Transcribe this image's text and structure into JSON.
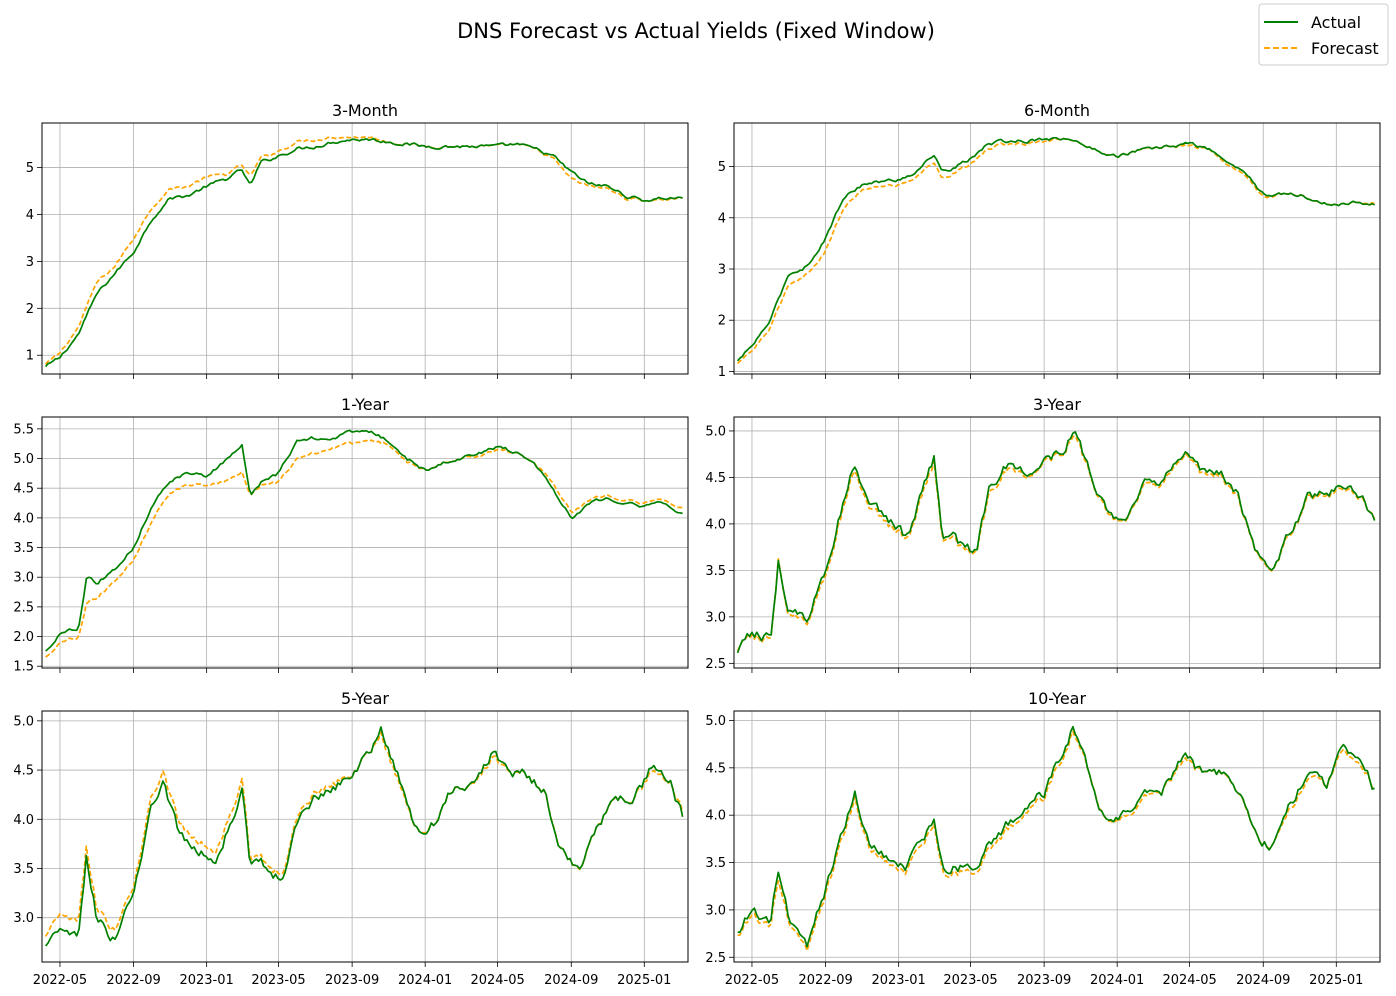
{
  "figure": {
    "title": "DNS Forecast vs Actual Yields (Fixed Window)"
  },
  "legend": {
    "position": "top-right",
    "actual_label": "Actual",
    "forecast_label": "Forecast"
  },
  "colors": {
    "actual": "#008000",
    "forecast": "#FFA500",
    "grid": "#b0b0b0"
  },
  "x_axis": {
    "start": "2022-04-01",
    "end": "2025-03-15",
    "ticks": [
      {
        "date": "2022-05-01",
        "label": "2022-05"
      },
      {
        "date": "2022-09-01",
        "label": "2022-09"
      },
      {
        "date": "2023-01-01",
        "label": "2023-01"
      },
      {
        "date": "2023-05-01",
        "label": "2023-05"
      },
      {
        "date": "2023-09-01",
        "label": "2023-09"
      },
      {
        "date": "2024-01-01",
        "label": "2024-01"
      },
      {
        "date": "2024-05-01",
        "label": "2024-05"
      },
      {
        "date": "2024-09-01",
        "label": "2024-09"
      },
      {
        "date": "2025-01-01",
        "label": "2025-01"
      }
    ]
  },
  "chart_data": [
    {
      "type": "line",
      "title": "3-Month",
      "ylim": [
        0.6,
        5.95
      ],
      "yticks": [
        1,
        2,
        3,
        4,
        5
      ],
      "ytick_labels": [
        "1",
        "2",
        "3",
        "4",
        "5"
      ],
      "grid": true,
      "x": [
        "2022-04-07",
        "2022-05-01",
        "2022-06-01",
        "2022-07-01",
        "2022-08-01",
        "2022-09-01",
        "2022-10-01",
        "2022-11-01",
        "2022-12-01",
        "2023-01-01",
        "2023-02-01",
        "2023-03-01",
        "2023-03-15",
        "2023-04-01",
        "2023-05-01",
        "2023-06-01",
        "2023-07-01",
        "2023-08-01",
        "2023-09-01",
        "2023-10-01",
        "2023-11-01",
        "2023-12-01",
        "2024-01-01",
        "2024-02-01",
        "2024-03-01",
        "2024-04-01",
        "2024-05-01",
        "2024-06-01",
        "2024-07-01",
        "2024-08-01",
        "2024-09-01",
        "2024-10-01",
        "2024-11-01",
        "2024-12-01",
        "2025-01-01",
        "2025-02-01",
        "2025-03-07"
      ],
      "series": [
        {
          "name": "Actual",
          "values": [
            0.75,
            0.95,
            1.45,
            2.3,
            2.75,
            3.2,
            3.9,
            4.35,
            4.4,
            4.6,
            4.75,
            4.95,
            4.6,
            5.1,
            5.25,
            5.4,
            5.45,
            5.55,
            5.6,
            5.6,
            5.55,
            5.5,
            5.45,
            5.45,
            5.45,
            5.45,
            5.45,
            5.5,
            5.4,
            5.25,
            4.9,
            4.65,
            4.6,
            4.4,
            4.3,
            4.35,
            4.35
          ]
        },
        {
          "name": "Forecast",
          "values": [
            0.8,
            1.05,
            1.6,
            2.55,
            2.9,
            3.5,
            4.15,
            4.55,
            4.6,
            4.8,
            4.85,
            5.05,
            4.8,
            5.2,
            5.35,
            5.55,
            5.6,
            5.65,
            5.65,
            5.65,
            5.55,
            5.5,
            5.45,
            5.45,
            5.45,
            5.45,
            5.45,
            5.5,
            5.4,
            5.2,
            4.75,
            4.6,
            4.55,
            4.35,
            4.3,
            4.32,
            4.35
          ]
        }
      ]
    },
    {
      "type": "line",
      "title": "6-Month",
      "ylim": [
        0.95,
        5.85
      ],
      "yticks": [
        1,
        2,
        3,
        4,
        5
      ],
      "ytick_labels": [
        "1",
        "2",
        "3",
        "4",
        "5"
      ],
      "grid": true,
      "x": [
        "2022-04-07",
        "2022-05-01",
        "2022-06-01",
        "2022-07-01",
        "2022-08-01",
        "2022-09-01",
        "2022-10-01",
        "2022-11-01",
        "2022-12-01",
        "2023-01-01",
        "2023-02-01",
        "2023-03-01",
        "2023-03-15",
        "2023-04-01",
        "2023-05-01",
        "2023-06-01",
        "2023-07-01",
        "2023-08-01",
        "2023-09-01",
        "2023-10-01",
        "2023-11-01",
        "2023-12-01",
        "2024-01-01",
        "2024-02-01",
        "2024-03-01",
        "2024-04-01",
        "2024-05-01",
        "2024-06-01",
        "2024-07-01",
        "2024-08-01",
        "2024-09-01",
        "2024-10-01",
        "2024-11-01",
        "2024-12-01",
        "2025-01-01",
        "2025-02-01",
        "2025-03-07"
      ],
      "series": [
        {
          "name": "Actual",
          "values": [
            1.2,
            1.5,
            2.0,
            2.9,
            3.05,
            3.6,
            4.4,
            4.65,
            4.7,
            4.75,
            4.9,
            5.25,
            4.9,
            4.95,
            5.15,
            5.45,
            5.5,
            5.5,
            5.55,
            5.55,
            5.45,
            5.3,
            5.2,
            5.3,
            5.35,
            5.4,
            5.45,
            5.35,
            5.1,
            4.9,
            4.45,
            4.45,
            4.45,
            4.3,
            4.25,
            4.3,
            4.28
          ]
        },
        {
          "name": "Forecast",
          "values": [
            1.15,
            1.4,
            1.85,
            2.7,
            2.9,
            3.35,
            4.2,
            4.55,
            4.6,
            4.65,
            4.8,
            5.1,
            4.75,
            4.85,
            5.05,
            5.35,
            5.45,
            5.45,
            5.5,
            5.55,
            5.45,
            5.3,
            5.2,
            5.3,
            5.35,
            5.4,
            5.4,
            5.35,
            5.05,
            4.85,
            4.4,
            4.45,
            4.45,
            4.3,
            4.25,
            4.3,
            4.3
          ]
        }
      ]
    },
    {
      "type": "line",
      "title": "1-Year",
      "ylim": [
        1.47,
        5.7
      ],
      "yticks": [
        1.5,
        2.0,
        2.5,
        3.0,
        3.5,
        4.0,
        4.5,
        5.0,
        5.5
      ],
      "ytick_labels": [
        "1.5",
        "2.0",
        "2.5",
        "3.0",
        "3.5",
        "4.0",
        "4.5",
        "5.0",
        "5.5"
      ],
      "grid": true,
      "x": [
        "2022-04-07",
        "2022-05-01",
        "2022-06-01",
        "2022-06-15",
        "2022-07-01",
        "2022-08-01",
        "2022-09-01",
        "2022-10-01",
        "2022-11-01",
        "2022-12-01",
        "2023-01-01",
        "2023-02-01",
        "2023-03-01",
        "2023-03-15",
        "2023-04-01",
        "2023-05-01",
        "2023-06-01",
        "2023-07-01",
        "2023-08-01",
        "2023-09-01",
        "2023-10-01",
        "2023-11-01",
        "2023-12-01",
        "2024-01-01",
        "2024-02-01",
        "2024-03-01",
        "2024-04-01",
        "2024-05-01",
        "2024-06-01",
        "2024-07-01",
        "2024-08-01",
        "2024-09-01",
        "2024-10-01",
        "2024-11-01",
        "2024-12-01",
        "2025-01-01",
        "2025-02-01",
        "2025-03-07"
      ],
      "series": [
        {
          "name": "Actual",
          "values": [
            1.75,
            2.05,
            2.15,
            3.05,
            2.9,
            3.15,
            3.5,
            4.2,
            4.65,
            4.75,
            4.7,
            4.95,
            5.2,
            4.4,
            4.6,
            4.75,
            5.3,
            5.35,
            5.35,
            5.45,
            5.45,
            5.3,
            5.0,
            4.8,
            4.95,
            5.0,
            5.1,
            5.2,
            5.1,
            4.95,
            4.5,
            4.0,
            4.25,
            4.35,
            4.25,
            4.2,
            4.25,
            4.05
          ]
        },
        {
          "name": "Forecast",
          "values": [
            1.65,
            1.9,
            2.0,
            2.6,
            2.65,
            2.95,
            3.3,
            3.95,
            4.45,
            4.55,
            4.55,
            4.6,
            4.75,
            4.4,
            4.55,
            4.6,
            5.0,
            5.1,
            5.2,
            5.25,
            5.3,
            5.25,
            4.95,
            4.8,
            4.95,
            5.0,
            5.05,
            5.15,
            5.1,
            4.95,
            4.6,
            4.1,
            4.3,
            4.4,
            4.3,
            4.25,
            4.3,
            4.15
          ]
        }
      ]
    },
    {
      "type": "line",
      "title": "3-Year",
      "ylim": [
        2.45,
        5.15
      ],
      "yticks": [
        2.5,
        3.0,
        3.5,
        4.0,
        4.5,
        5.0
      ],
      "ytick_labels": [
        "2.5",
        "3.0",
        "3.5",
        "4.0",
        "4.5",
        "5.0"
      ],
      "grid": true,
      "x": [
        "2022-04-07",
        "2022-05-01",
        "2022-06-01",
        "2022-06-14",
        "2022-07-01",
        "2022-08-01",
        "2022-09-01",
        "2022-10-01",
        "2022-10-20",
        "2022-11-15",
        "2022-12-15",
        "2023-01-15",
        "2023-03-01",
        "2023-03-15",
        "2023-04-01",
        "2023-04-20",
        "2023-05-10",
        "2023-06-01",
        "2023-07-01",
        "2023-08-01",
        "2023-09-01",
        "2023-10-01",
        "2023-10-20",
        "2023-11-15",
        "2023-12-15",
        "2024-01-15",
        "2024-02-15",
        "2024-03-15",
        "2024-04-25",
        "2024-05-20",
        "2024-06-20",
        "2024-07-20",
        "2024-08-15",
        "2024-09-01",
        "2024-09-15",
        "2024-10-15",
        "2024-11-15",
        "2024-12-15",
        "2025-01-15",
        "2025-02-15",
        "2025-03-07"
      ],
      "series": [
        {
          "name": "Actual",
          "values": [
            2.6,
            2.85,
            2.75,
            3.6,
            3.1,
            2.95,
            3.5,
            4.25,
            4.65,
            4.2,
            4.05,
            3.85,
            4.7,
            3.8,
            3.85,
            3.75,
            3.7,
            4.35,
            4.65,
            4.55,
            4.7,
            4.8,
            5.0,
            4.6,
            4.1,
            4.1,
            4.45,
            4.45,
            4.85,
            4.55,
            4.55,
            4.35,
            3.75,
            3.6,
            3.45,
            3.9,
            4.3,
            4.3,
            4.45,
            4.3,
            4.0
          ]
        },
        {
          "name": "Forecast",
          "values": [
            2.62,
            2.82,
            2.72,
            3.62,
            3.05,
            2.92,
            3.45,
            4.2,
            4.6,
            4.15,
            4.0,
            3.82,
            4.65,
            3.78,
            3.82,
            3.72,
            3.68,
            4.3,
            4.6,
            4.52,
            4.68,
            4.78,
            4.96,
            4.58,
            4.08,
            4.08,
            4.42,
            4.42,
            4.82,
            4.52,
            4.52,
            4.32,
            3.75,
            3.58,
            3.45,
            3.88,
            4.28,
            4.28,
            4.42,
            4.28,
            4.02
          ]
        }
      ]
    },
    {
      "type": "line",
      "title": "5-Year",
      "ylim": [
        2.55,
        5.1
      ],
      "yticks": [
        3.0,
        3.5,
        4.0,
        4.5,
        5.0
      ],
      "ytick_labels": [
        "3.0",
        "3.5",
        "4.0",
        "4.5",
        "5.0"
      ],
      "grid": true,
      "x": [
        "2022-04-07",
        "2022-05-01",
        "2022-06-01",
        "2022-06-14",
        "2022-07-01",
        "2022-08-01",
        "2022-09-01",
        "2022-10-01",
        "2022-10-20",
        "2022-11-15",
        "2022-12-15",
        "2023-01-15",
        "2023-03-01",
        "2023-03-15",
        "2023-04-01",
        "2023-04-20",
        "2023-05-10",
        "2023-06-01",
        "2023-07-01",
        "2023-08-01",
        "2023-09-01",
        "2023-10-01",
        "2023-10-20",
        "2023-11-15",
        "2023-12-15",
        "2024-01-15",
        "2024-02-15",
        "2024-03-15",
        "2024-04-25",
        "2024-05-20",
        "2024-06-20",
        "2024-07-20",
        "2024-08-15",
        "2024-09-01",
        "2024-09-15",
        "2024-10-15",
        "2024-11-15",
        "2024-12-15",
        "2025-01-15",
        "2025-02-15",
        "2025-03-07"
      ],
      "series": [
        {
          "name": "Actual",
          "values": [
            2.7,
            2.9,
            2.8,
            3.6,
            3.0,
            2.75,
            3.3,
            4.1,
            4.4,
            3.85,
            3.7,
            3.55,
            4.3,
            3.5,
            3.55,
            3.45,
            3.4,
            3.95,
            4.2,
            4.3,
            4.45,
            4.7,
            4.9,
            4.5,
            3.9,
            3.95,
            4.3,
            4.3,
            4.7,
            4.45,
            4.45,
            4.25,
            3.7,
            3.55,
            3.45,
            3.95,
            4.2,
            4.2,
            4.55,
            4.35,
            4.0
          ]
        },
        {
          "name": "Forecast",
          "values": [
            2.8,
            3.05,
            2.95,
            3.7,
            3.1,
            2.85,
            3.35,
            4.2,
            4.5,
            3.95,
            3.8,
            3.65,
            4.4,
            3.55,
            3.6,
            3.5,
            3.45,
            4.0,
            4.25,
            4.35,
            4.45,
            4.7,
            4.85,
            4.45,
            3.9,
            3.95,
            4.3,
            4.3,
            4.65,
            4.45,
            4.45,
            4.25,
            3.7,
            3.55,
            3.45,
            3.95,
            4.2,
            4.2,
            4.5,
            4.35,
            4.05
          ]
        }
      ]
    },
    {
      "type": "line",
      "title": "10-Year",
      "ylim": [
        2.45,
        5.1
      ],
      "yticks": [
        2.5,
        3.0,
        3.5,
        4.0,
        4.5,
        5.0
      ],
      "ytick_labels": [
        "2.5",
        "3.0",
        "3.5",
        "4.0",
        "4.5",
        "5.0"
      ],
      "grid": true,
      "x": [
        "2022-04-07",
        "2022-05-01",
        "2022-06-01",
        "2022-06-14",
        "2022-07-01",
        "2022-08-01",
        "2022-09-01",
        "2022-10-01",
        "2022-10-20",
        "2022-11-15",
        "2022-12-15",
        "2023-01-15",
        "2023-03-01",
        "2023-03-15",
        "2023-04-01",
        "2023-04-20",
        "2023-05-10",
        "2023-06-01",
        "2023-07-01",
        "2023-08-01",
        "2023-09-01",
        "2023-10-01",
        "2023-10-20",
        "2023-11-15",
        "2023-12-15",
        "2024-01-15",
        "2024-02-15",
        "2024-03-15",
        "2024-04-25",
        "2024-05-20",
        "2024-06-20",
        "2024-07-20",
        "2024-08-15",
        "2024-09-01",
        "2024-09-15",
        "2024-10-15",
        "2024-11-15",
        "2024-12-15",
        "2025-01-15",
        "2025-02-15",
        "2025-03-07"
      ],
      "series": [
        {
          "name": "Actual",
          "values": [
            2.75,
            3.0,
            2.9,
            3.45,
            2.95,
            2.65,
            3.2,
            3.85,
            4.2,
            3.7,
            3.55,
            3.45,
            3.95,
            3.45,
            3.45,
            3.45,
            3.45,
            3.7,
            3.9,
            4.1,
            4.25,
            4.65,
            4.95,
            4.45,
            3.9,
            4.05,
            4.25,
            4.25,
            4.65,
            4.45,
            4.45,
            4.25,
            3.85,
            3.7,
            3.7,
            4.1,
            4.45,
            4.3,
            4.75,
            4.55,
            4.25
          ]
        },
        {
          "name": "Forecast",
          "values": [
            2.72,
            2.95,
            2.85,
            3.35,
            2.9,
            2.6,
            3.15,
            3.8,
            4.15,
            3.65,
            3.5,
            3.4,
            3.9,
            3.4,
            3.4,
            3.4,
            3.4,
            3.65,
            3.85,
            4.05,
            4.2,
            4.6,
            4.9,
            4.45,
            3.9,
            4.0,
            4.2,
            4.25,
            4.6,
            4.45,
            4.45,
            4.25,
            3.85,
            3.7,
            3.7,
            4.05,
            4.4,
            4.3,
            4.7,
            4.5,
            4.28
          ]
        }
      ]
    }
  ]
}
